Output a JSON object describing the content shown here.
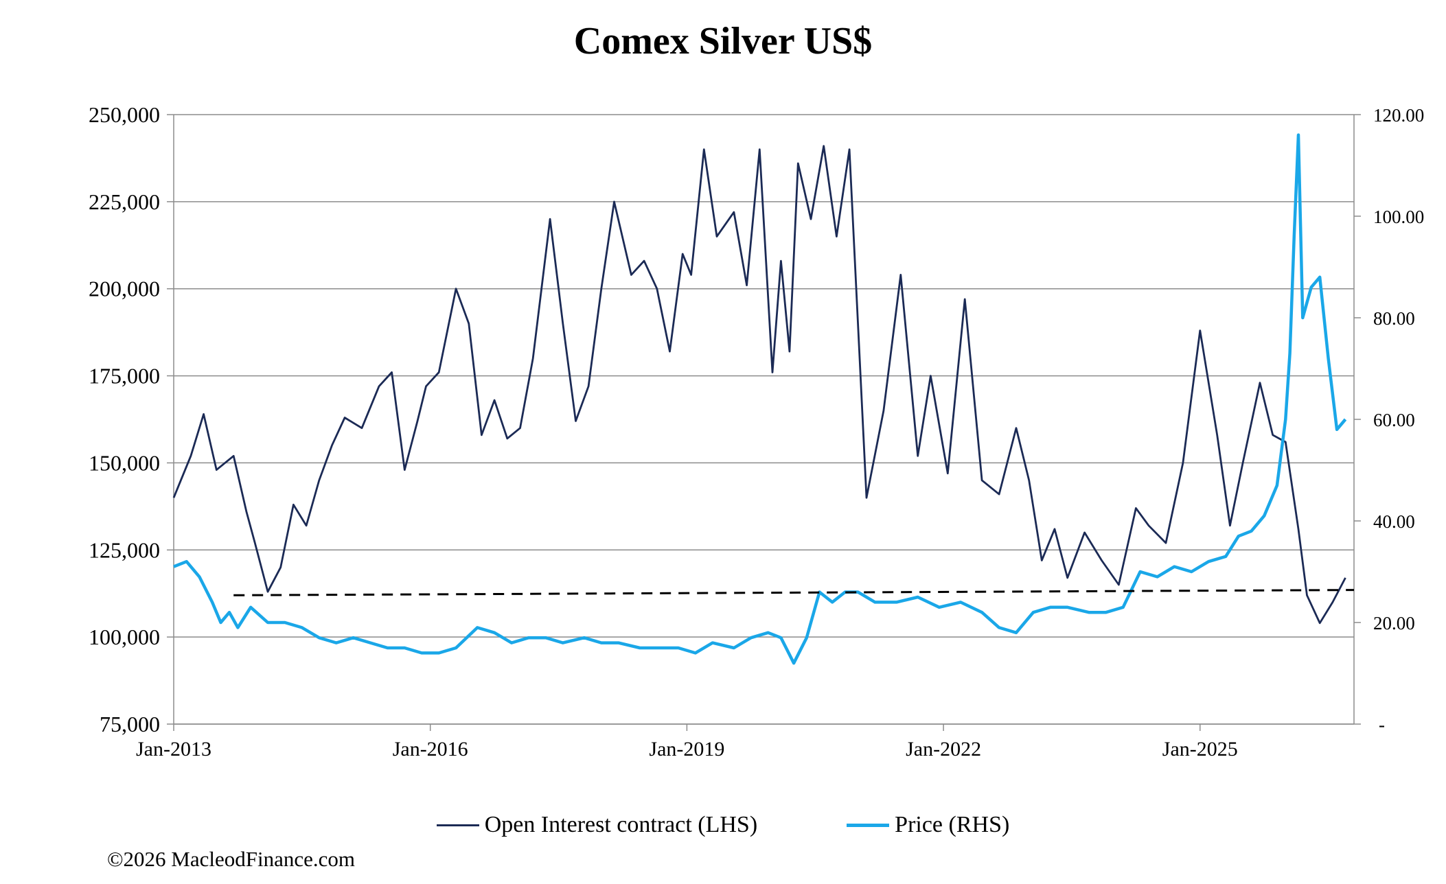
{
  "chart_data": {
    "type": "line",
    "title": "Comex Silver US$",
    "x_tick_labels": [
      "Jan-2013",
      "Jan-2016",
      "Jan-2019",
      "Jan-2022",
      "Jan-2025"
    ],
    "x_range": [
      2013.0,
      2026.8
    ],
    "y_left": {
      "range": [
        75000,
        250000
      ],
      "tick_labels": [
        "75,000",
        "100,000",
        "125,000",
        "150,000",
        "175,000",
        "200,000",
        "225,000",
        "250,000"
      ]
    },
    "y_right": {
      "range": [
        0,
        120
      ],
      "tick_labels": [
        "-",
        "20.00",
        "40.00",
        "60.00",
        "80.00",
        "100.00",
        "120.00"
      ]
    },
    "grid": true,
    "legend_position": "bottom",
    "series": [
      {
        "name": "Open Interest contract (LHS)",
        "axis": "left",
        "color": "#1b2a55",
        "x": [
          2013.0,
          2013.2,
          2013.35,
          2013.5,
          2013.7,
          2013.85,
          2013.95,
          2014.1,
          2014.25,
          2014.4,
          2014.55,
          2014.7,
          2014.85,
          2015.0,
          2015.2,
          2015.4,
          2015.55,
          2015.7,
          2015.85,
          2015.95,
          2016.1,
          2016.3,
          2016.45,
          2016.6,
          2016.75,
          2016.9,
          2017.05,
          2017.2,
          2017.4,
          2017.55,
          2017.7,
          2017.85,
          2018.0,
          2018.15,
          2018.35,
          2018.5,
          2018.65,
          2018.8,
          2018.95,
          2019.05,
          2019.2,
          2019.35,
          2019.55,
          2019.7,
          2019.85,
          2020.0,
          2020.1,
          2020.2,
          2020.3,
          2020.45,
          2020.6,
          2020.75,
          2020.9,
          2021.1,
          2021.3,
          2021.5,
          2021.7,
          2021.85,
          2022.05,
          2022.25,
          2022.45,
          2022.65,
          2022.85,
          2023.0,
          2023.15,
          2023.3,
          2023.45,
          2023.65,
          2023.85,
          2024.05,
          2024.25,
          2024.4,
          2024.6,
          2024.8,
          2025.0,
          2025.2,
          2025.35,
          2025.5,
          2025.7,
          2025.85,
          2026.0,
          2026.15,
          2026.25,
          2026.4,
          2026.55,
          2026.7
        ],
        "values": [
          140000,
          152000,
          164000,
          148000,
          152000,
          136000,
          127000,
          113000,
          120000,
          138000,
          132000,
          145000,
          155000,
          163000,
          160000,
          172000,
          176000,
          148000,
          162000,
          172000,
          176000,
          200000,
          190000,
          158000,
          168000,
          157000,
          160000,
          180000,
          220000,
          190000,
          162000,
          172000,
          200000,
          225000,
          204000,
          208000,
          200000,
          182000,
          210000,
          204000,
          240000,
          215000,
          222000,
          201000,
          240000,
          176000,
          208000,
          182000,
          236000,
          220000,
          241000,
          215000,
          240000,
          140000,
          165000,
          204000,
          152000,
          175000,
          147000,
          197000,
          145000,
          141000,
          160000,
          145000,
          122000,
          131000,
          117000,
          130000,
          122000,
          115000,
          137000,
          132000,
          127000,
          150000,
          188000,
          158000,
          132000,
          150000,
          173000,
          158000,
          156000,
          131000,
          112000,
          104000,
          110000,
          117000
        ]
      },
      {
        "name": "Price (RHS)",
        "axis": "right",
        "color": "#1aa7e8",
        "x": [
          2013.0,
          2013.15,
          2013.3,
          2013.45,
          2013.55,
          2013.65,
          2013.75,
          2013.9,
          2014.1,
          2014.3,
          2014.5,
          2014.7,
          2014.9,
          2015.1,
          2015.3,
          2015.5,
          2015.7,
          2015.9,
          2016.1,
          2016.3,
          2016.55,
          2016.75,
          2016.95,
          2017.15,
          2017.35,
          2017.55,
          2017.8,
          2018.0,
          2018.2,
          2018.45,
          2018.7,
          2018.9,
          2019.1,
          2019.3,
          2019.55,
          2019.75,
          2019.95,
          2020.1,
          2020.25,
          2020.4,
          2020.55,
          2020.7,
          2020.85,
          2021.0,
          2021.2,
          2021.45,
          2021.7,
          2021.95,
          2022.2,
          2022.45,
          2022.65,
          2022.85,
          2023.05,
          2023.25,
          2023.45,
          2023.7,
          2023.9,
          2024.1,
          2024.3,
          2024.5,
          2024.7,
          2024.9,
          2025.1,
          2025.3,
          2025.45,
          2025.6,
          2025.75,
          2025.9,
          2026.0,
          2026.05,
          2026.1,
          2026.15,
          2026.2,
          2026.3,
          2026.4,
          2026.5,
          2026.6,
          2026.7
        ],
        "values": [
          31,
          32,
          29,
          24,
          20,
          22,
          19,
          23,
          20,
          20,
          19,
          17,
          16,
          17,
          16,
          15,
          15,
          14,
          14,
          15,
          19,
          18,
          16,
          17,
          17,
          16,
          17,
          16,
          16,
          15,
          15,
          15,
          14,
          16,
          15,
          17,
          18,
          17,
          12,
          17,
          26,
          24,
          26,
          26,
          24,
          24,
          25,
          23,
          24,
          22,
          19,
          18,
          22,
          23,
          23,
          22,
          22,
          23,
          30,
          29,
          31,
          30,
          32,
          33,
          37,
          38,
          41,
          47,
          60,
          73,
          96,
          116,
          80,
          86,
          88,
          72,
          58,
          60
        ]
      },
      {
        "name": "",
        "axis": "left",
        "color": "#000000",
        "dashed": true,
        "x": [
          2013.7,
          2026.8
        ],
        "values": [
          112000,
          113500
        ]
      }
    ]
  },
  "copyright": "©2026 MacleodFinance.com"
}
